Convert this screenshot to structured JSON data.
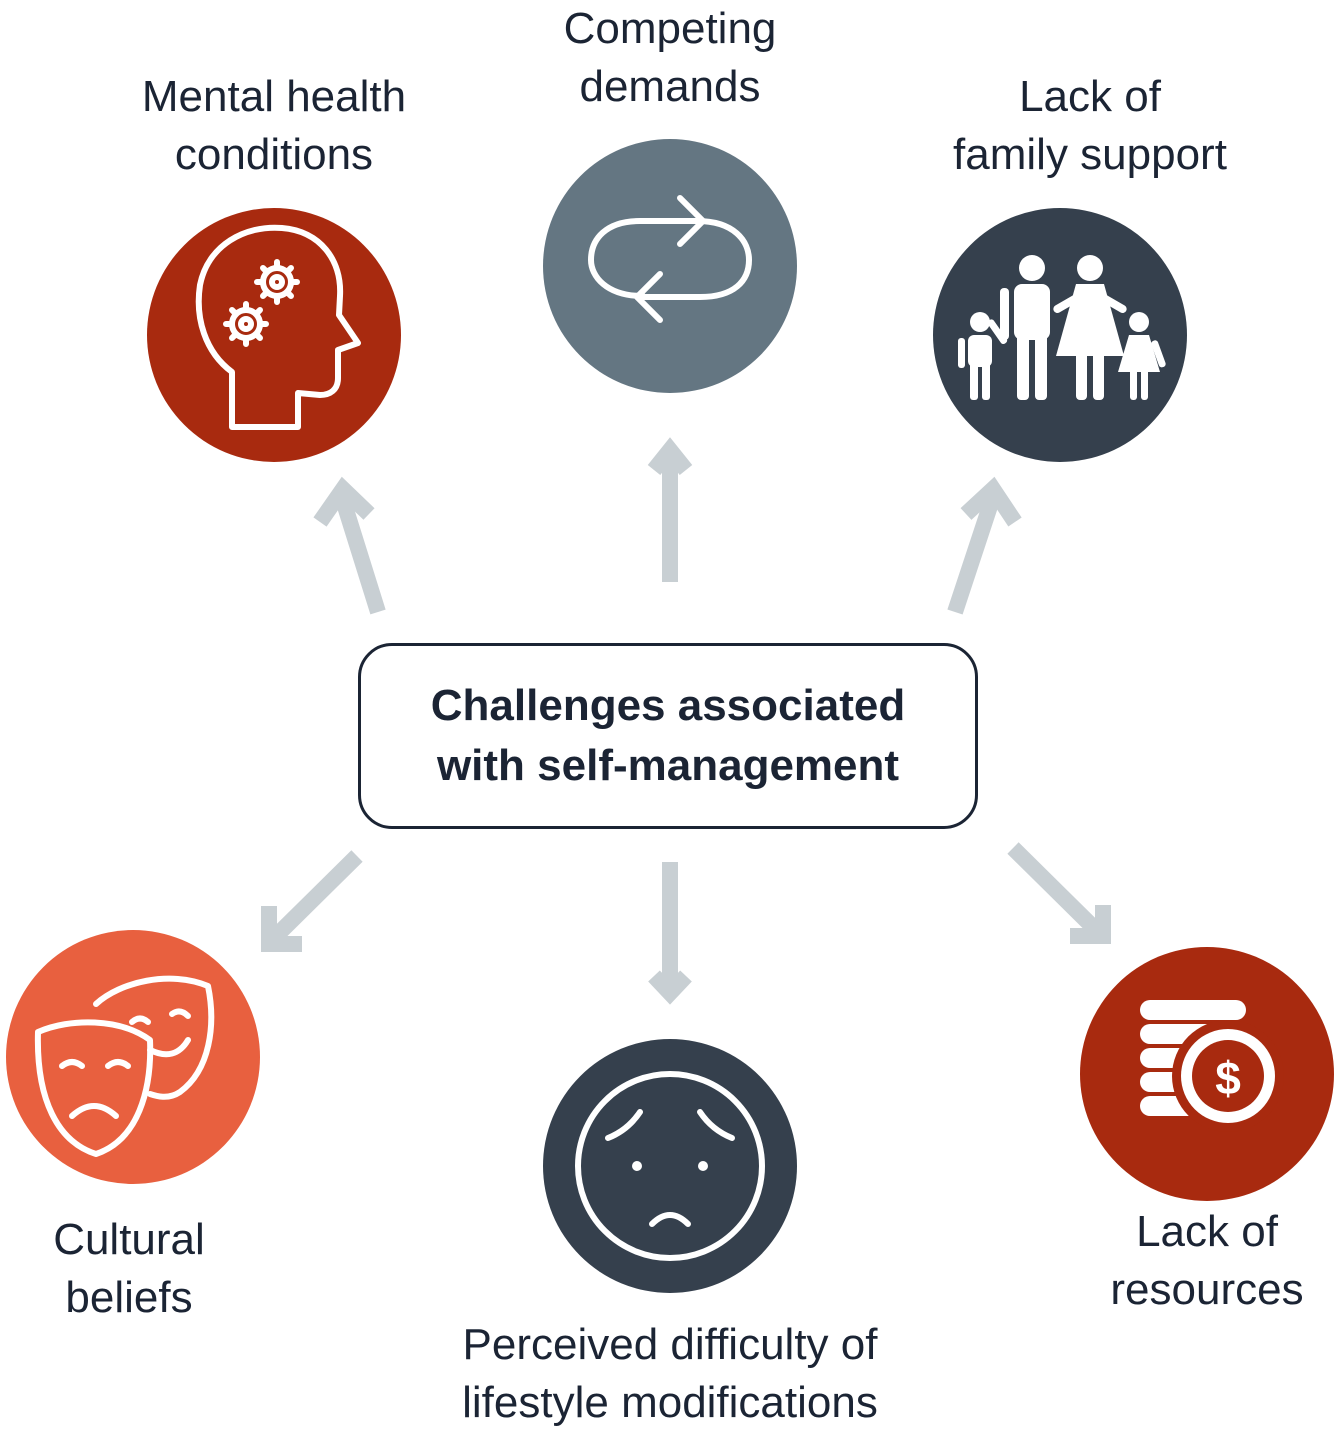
{
  "center": {
    "line1": "Challenges associated",
    "line2": "with self-management"
  },
  "nodes": {
    "mental": {
      "line1": "Mental health",
      "line2": "conditions",
      "icon": "head-gears-icon",
      "color": "#a82a0f"
    },
    "competing": {
      "line1": "Competing",
      "line2": "demands",
      "icon": "cycle-arrows-icon",
      "color": "#647682"
    },
    "family": {
      "line1": "Lack of",
      "line2": "family support",
      "icon": "family-icon",
      "color": "#35404d"
    },
    "cultural": {
      "line1": "Cultural",
      "line2": "beliefs",
      "icon": "theater-masks-icon",
      "color": "#e8603f"
    },
    "difficulty": {
      "line1": "Perceived difficulty of",
      "line2": "lifestyle modifications",
      "icon": "worried-face-icon",
      "color": "#35404d"
    },
    "resources": {
      "line1": "Lack of",
      "line2": "resources",
      "icon": "coins-dollar-icon",
      "color": "#a82a0f"
    }
  },
  "arrow_color": "#c8cfd3"
}
